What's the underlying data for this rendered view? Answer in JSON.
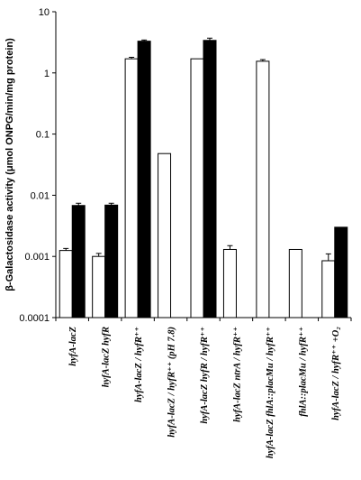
{
  "chart_data": {
    "type": "bar",
    "ylabel": "β-Galactosidase activity (μmol ONPG/min/mg protein)",
    "yscale": "log",
    "ylim": [
      0.0001,
      10
    ],
    "yticks": [
      "0.0001",
      "0.001",
      "0.01",
      "0.1",
      "1",
      "10"
    ],
    "categories": [
      "hyfA-lacZ",
      "hyfA-lacZ  hyfR",
      "hyfA-lacZ / hyfR⁺⁺",
      "hyfA-lacZ / hyfR⁺⁺ (pH 7.8)",
      "hyfA-lacZ hyfR / hyfR⁺⁺",
      "hyfA-lacZ ntrA / hyfR⁺⁺",
      "hyfA-lacZ  fhlA::placMu / hyfR⁺⁺",
      "fhlA::placMu / hyfR⁺⁺",
      "hyfA-lacZ / hyfR⁺⁺ +O₂"
    ],
    "series": [
      {
        "color": "#ffffff",
        "values": [
          0.00125,
          0.001,
          1.7,
          0.048,
          1.7,
          0.0013,
          1.55,
          0.0013,
          0.00085
        ],
        "error": [
          0.0001,
          0.00012,
          0.1,
          null,
          null,
          0.0002,
          0.1,
          null,
          0.00025
        ]
      },
      {
        "color": "#000000",
        "values": [
          0.0068,
          0.0069,
          3.3,
          null,
          3.4,
          null,
          null,
          null,
          0.003
        ],
        "error": [
          0.0006,
          0.0005,
          0.15,
          null,
          0.3,
          null,
          null,
          null,
          null
        ]
      }
    ],
    "grid": false,
    "legend": "none"
  }
}
